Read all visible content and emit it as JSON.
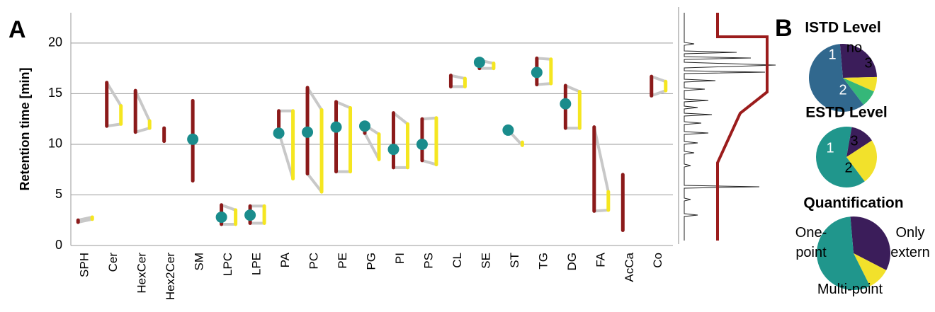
{
  "chart_data": [
    {
      "type": "range",
      "panel_label": "A",
      "ylabel": "Retention time [min]",
      "categories": [
        "SPH",
        "Cer",
        "HexCer",
        "Hex2Cer",
        "SM",
        "LPC",
        "LPE",
        "PA",
        "PC",
        "PE",
        "PG",
        "PI",
        "PS",
        "CL",
        "SE",
        "ST",
        "TG",
        "DG",
        "FA",
        "AcCa",
        "Co"
      ],
      "ylim": [
        0,
        23
      ],
      "yticks": [
        0,
        5,
        10,
        15,
        20
      ],
      "grid": true,
      "series": [
        {
          "color": "#8b1a1a",
          "low": [
            2.3,
            11.8,
            11.2,
            10.3,
            6.4,
            2.1,
            2.2,
            11.2,
            7.1,
            7.3,
            11.1,
            7.7,
            8.4,
            15.7,
            17.5,
            null,
            15.9,
            11.6,
            3.4,
            1.5,
            14.8
          ],
          "high": [
            2.5,
            16.1,
            15.3,
            11.6,
            14.3,
            4.0,
            3.9,
            13.3,
            15.6,
            14.2,
            11.9,
            13.1,
            12.5,
            16.8,
            18.3,
            null,
            18.5,
            15.8,
            11.7,
            7.0,
            16.7
          ]
        },
        {
          "color": "#f5e620",
          "low": [
            2.6,
            12.0,
            11.6,
            null,
            null,
            2.1,
            2.2,
            6.6,
            5.3,
            7.3,
            8.5,
            7.7,
            8.0,
            15.7,
            17.5,
            9.9,
            16.0,
            11.6,
            3.5,
            null,
            15.3
          ],
          "high": [
            2.8,
            13.8,
            12.3,
            null,
            null,
            3.5,
            3.9,
            13.3,
            13.4,
            13.6,
            11.0,
            12.0,
            12.6,
            16.5,
            18.0,
            10.2,
            18.4,
            15.2,
            5.3,
            null,
            16.2
          ]
        },
        {
          "color": "#1a8c8c",
          "values": [
            null,
            null,
            null,
            null,
            10.5,
            2.8,
            3.0,
            11.1,
            11.2,
            11.7,
            11.8,
            9.5,
            10.0,
            null,
            18.1,
            11.4,
            17.1,
            14.0,
            null,
            null,
            null
          ]
        }
      ]
    },
    {
      "type": "pie",
      "panel_label": "B",
      "title": "ISTD Level",
      "categories": [
        "1",
        "no",
        "3",
        "2"
      ],
      "values": [
        26,
        7,
        8,
        59
      ],
      "colors": [
        "#3b1d5a",
        "#f2e12b",
        "#35b779",
        "#31688e"
      ]
    },
    {
      "type": "pie",
      "title": "ESTD Level",
      "categories": [
        "1",
        "3",
        "2"
      ],
      "values": [
        13,
        24,
        63
      ],
      "colors": [
        "#3b1d5a",
        "#f2e12b",
        "#20968c"
      ]
    },
    {
      "type": "pie",
      "title": "Quantification",
      "categories": [
        [
          "One-",
          "point"
        ],
        [
          "Only",
          "extern"
        ],
        [
          "Multi-point"
        ]
      ],
      "values": [
        34,
        10,
        56
      ],
      "colors": [
        "#3b1d5a",
        "#f2e12b",
        "#20968c"
      ]
    }
  ]
}
